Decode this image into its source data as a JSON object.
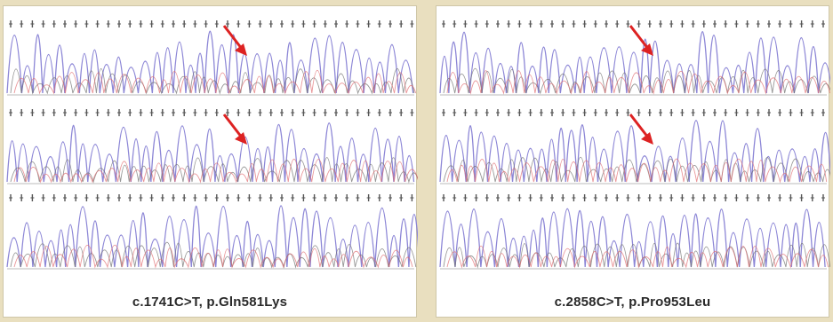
{
  "colors": {
    "background": "#e9dfbf",
    "panel": "#ffffff",
    "trace_blue": "#8c86d6",
    "trace_red": "#e0686c",
    "trace_black": "#6a6a6a",
    "base_ticks": "#555555",
    "arrow": "#dd2222"
  },
  "panels": [
    {
      "caption": "c.1741C>T, p.Gln581Lys",
      "tracks": 3,
      "arrows_on_tracks": [
        0,
        1
      ]
    },
    {
      "caption": "c.2858C>T, p.Pro953Leu",
      "tracks": 3,
      "arrows_on_tracks": [
        0,
        1
      ]
    }
  ]
}
